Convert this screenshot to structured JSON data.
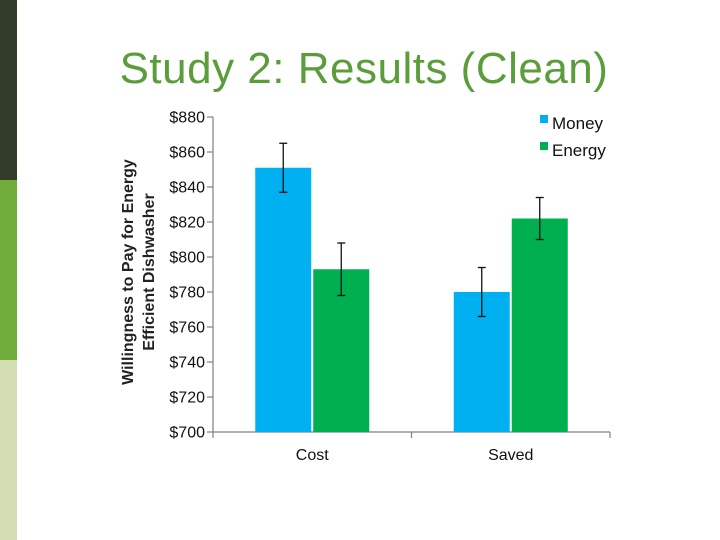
{
  "slide": {
    "title": "Study 2: Results (Clean)",
    "stripe_colors": [
      "#323b27",
      "#6fac3c",
      "#d2deb1"
    ]
  },
  "chart_data": {
    "type": "bar",
    "title": "",
    "xlabel": "",
    "ylabel_lines": [
      "Willingness to Pay for Energy",
      "Efficient Dishwasher"
    ],
    "categories": [
      "Cost",
      "Saved"
    ],
    "series": [
      {
        "name": "Money",
        "color": "#00b0f0",
        "values": [
          851,
          780
        ],
        "error": [
          14,
          14
        ]
      },
      {
        "name": "Energy",
        "color": "#00b050",
        "values": [
          793,
          822
        ],
        "error": [
          15,
          12
        ]
      }
    ],
    "ylim": [
      700,
      880
    ],
    "y_ticks": [
      "$880",
      "$860",
      "$840",
      "$820",
      "$800",
      "$780",
      "$760",
      "$740",
      "$720",
      "$700"
    ],
    "grid": false,
    "legend_position": "top-right"
  }
}
